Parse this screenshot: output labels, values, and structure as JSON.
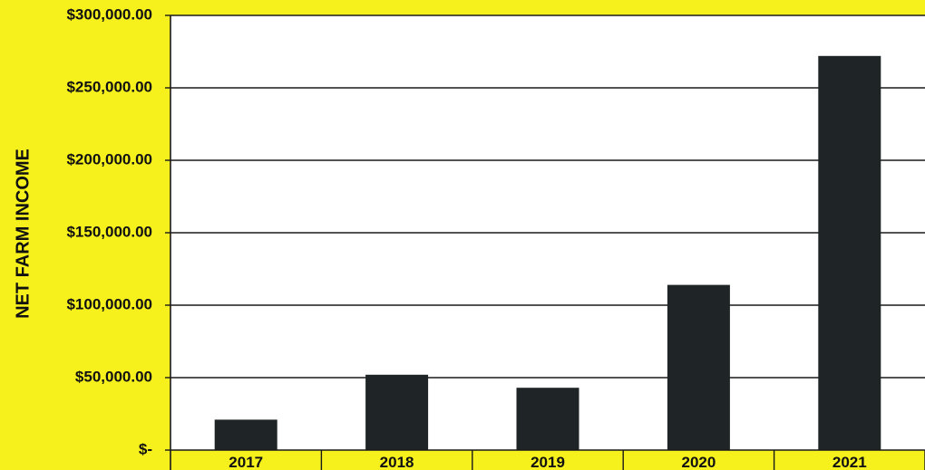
{
  "chart_data": {
    "type": "bar",
    "title": "",
    "xlabel": "",
    "ylabel": "NET FARM INCOME",
    "categories": [
      "2017",
      "2018",
      "2019",
      "2020",
      "2021"
    ],
    "values": [
      21000,
      52000,
      43000,
      114000,
      272000
    ],
    "ylim": [
      0,
      300000
    ],
    "ytick_values": [
      0,
      50000,
      100000,
      150000,
      200000,
      250000,
      300000
    ],
    "ytick_labels": [
      "$-",
      "$50,000.00",
      "$100,000.00",
      "$150,000.00",
      "$200,000.00",
      "$250,000.00",
      "$300,000.00"
    ],
    "grid": true,
    "legend": "none",
    "colors": {
      "background": "#f6f01c",
      "plot_area": "#ffffff",
      "bar": "#1f2426",
      "grid": "#1a1a1a"
    }
  }
}
